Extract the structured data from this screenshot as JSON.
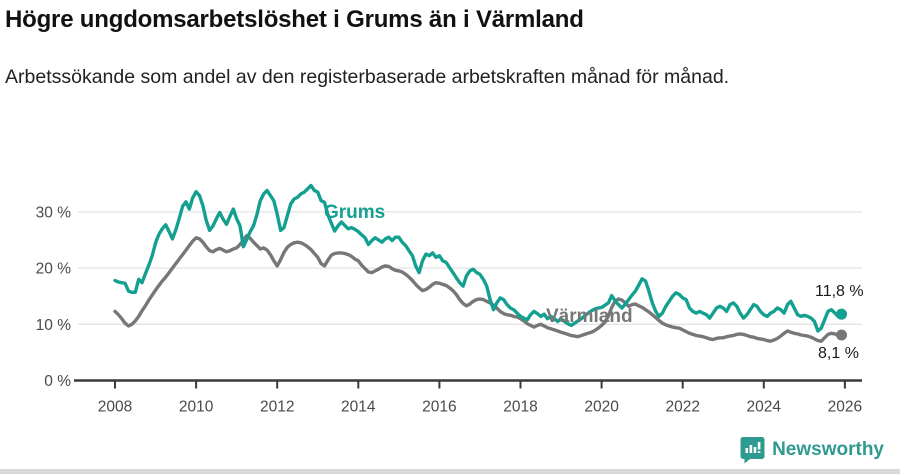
{
  "header": {
    "title": "Högre ungdomsarbetslöshet i Grums än i Värmland",
    "subtitle": "Arbetssökande som andel av den registerbaserade arbetskraften månad för månad."
  },
  "chart_data": {
    "type": "line",
    "unit": "%",
    "x_start_year": 2008,
    "points_per_year": 12,
    "x_axis": {
      "tick_years": [
        2008,
        2010,
        2012,
        2014,
        2016,
        2018,
        2020,
        2022,
        2024,
        2026
      ]
    },
    "y_axis": {
      "ticks": [
        0,
        10,
        20,
        30
      ],
      "tick_labels": [
        "0 %",
        "10 %",
        "20 %",
        "30 %"
      ],
      "min": 0,
      "max": 36,
      "grid": true
    },
    "legend_position": "inline-labels",
    "series": [
      {
        "name": "Värmland",
        "color": "#777777",
        "end_label": "8,1 %",
        "end_value": 8.1,
        "values": [
          12.3,
          11.7,
          11.0,
          10.2,
          9.7,
          10.0,
          10.6,
          11.4,
          12.4,
          13.3,
          14.3,
          15.2,
          16.1,
          16.9,
          17.7,
          18.4,
          19.2,
          20.0,
          20.8,
          21.6,
          22.4,
          23.2,
          24.0,
          24.8,
          25.4,
          25.2,
          24.6,
          23.8,
          23.1,
          22.9,
          23.3,
          23.5,
          23.2,
          22.9,
          23.1,
          23.4,
          23.6,
          24.2,
          25.0,
          25.8,
          25.3,
          24.6,
          24.0,
          23.4,
          23.6,
          23.2,
          22.4,
          21.3,
          20.4,
          21.5,
          22.8,
          23.7,
          24.2,
          24.5,
          24.6,
          24.5,
          24.2,
          23.8,
          23.3,
          22.6,
          21.9,
          20.8,
          20.4,
          21.4,
          22.3,
          22.6,
          22.7,
          22.7,
          22.6,
          22.4,
          22.1,
          21.6,
          21.3,
          20.5,
          19.9,
          19.3,
          19.2,
          19.5,
          19.8,
          20.2,
          20.4,
          20.3,
          19.9,
          19.6,
          19.5,
          19.3,
          18.9,
          18.4,
          17.8,
          17.1,
          16.5,
          16.0,
          16.2,
          16.6,
          17.1,
          17.4,
          17.3,
          17.1,
          16.9,
          16.5,
          16.0,
          15.3,
          14.4,
          13.7,
          13.3,
          13.6,
          14.1,
          14.4,
          14.5,
          14.4,
          14.1,
          13.8,
          13.4,
          12.9,
          12.3,
          11.9,
          11.7,
          11.6,
          11.4,
          11.3,
          11.0,
          10.6,
          10.1,
          9.8,
          9.5,
          9.8,
          10.0,
          9.7,
          9.4,
          9.2,
          9.0,
          8.8,
          8.6,
          8.4,
          8.2,
          8.0,
          7.9,
          7.8,
          8.0,
          8.2,
          8.4,
          8.6,
          8.9,
          9.3,
          9.8,
          10.4,
          11.5,
          13.0,
          14.1,
          14.5,
          14.3,
          13.8,
          13.2,
          13.5,
          13.6,
          13.3,
          13.0,
          12.6,
          12.2,
          11.7,
          11.2,
          10.7,
          10.2,
          9.9,
          9.7,
          9.5,
          9.4,
          9.3,
          9.0,
          8.7,
          8.4,
          8.2,
          8.0,
          7.9,
          7.8,
          7.6,
          7.4,
          7.3,
          7.5,
          7.6,
          7.6,
          7.8,
          7.9,
          8.0,
          8.2,
          8.3,
          8.2,
          8.0,
          7.8,
          7.7,
          7.5,
          7.4,
          7.3,
          7.1,
          7.0,
          7.2,
          7.5,
          7.9,
          8.4,
          8.8,
          8.6,
          8.4,
          8.3,
          8.1,
          8.0,
          7.9,
          7.7,
          7.4,
          7.1,
          7.0,
          7.6,
          8.2,
          8.4,
          8.3,
          8.0,
          8.1
        ]
      },
      {
        "name": "Grums",
        "color": "#14A091",
        "end_label": "11,8 %",
        "end_value": 11.8,
        "values": [
          17.8,
          17.5,
          17.4,
          17.3,
          15.9,
          15.7,
          15.7,
          18.0,
          17.4,
          19.0,
          20.5,
          22.2,
          24.5,
          26.0,
          27.0,
          27.7,
          26.5,
          25.2,
          26.8,
          28.8,
          31.0,
          31.8,
          30.5,
          32.5,
          33.6,
          32.9,
          31.1,
          28.5,
          26.7,
          27.5,
          28.8,
          29.9,
          28.7,
          27.8,
          29.2,
          30.5,
          28.8,
          27.5,
          23.8,
          25.1,
          26.5,
          27.5,
          29.5,
          32.0,
          33.2,
          33.8,
          32.9,
          32.0,
          29.6,
          26.7,
          27.2,
          29.3,
          31.4,
          32.3,
          32.6,
          33.2,
          33.5,
          34.1,
          34.7,
          33.8,
          33.5,
          32.0,
          31.7,
          29.5,
          28.0,
          26.6,
          27.5,
          28.2,
          27.6,
          27.0,
          27.2,
          26.9,
          26.5,
          25.9,
          25.4,
          24.2,
          24.9,
          25.4,
          25.0,
          24.6,
          25.2,
          25.5,
          24.9,
          25.5,
          25.5,
          24.6,
          24.0,
          23.1,
          22.2,
          20.4,
          19.2,
          21.3,
          22.5,
          22.2,
          22.7,
          21.9,
          22.2,
          21.3,
          21.0,
          20.1,
          19.2,
          18.3,
          17.4,
          16.8,
          18.6,
          19.5,
          19.8,
          19.2,
          18.9,
          18.0,
          16.8,
          14.4,
          12.6,
          13.8,
          14.7,
          14.4,
          13.5,
          12.9,
          12.6,
          12.0,
          11.4,
          11.1,
          10.8,
          11.7,
          12.3,
          11.9,
          11.4,
          11.8,
          11.0,
          11.4,
          11.0,
          10.5,
          11.0,
          10.5,
          10.1,
          9.8,
          10.2,
          10.6,
          11.0,
          11.5,
          12.0,
          12.4,
          12.7,
          12.9,
          13.0,
          13.4,
          13.8,
          15.1,
          14.2,
          13.5,
          12.9,
          13.6,
          14.4,
          15.2,
          15.9,
          17.0,
          18.1,
          17.7,
          15.9,
          13.8,
          12.3,
          11.4,
          12.0,
          13.2,
          14.1,
          15.0,
          15.6,
          15.3,
          14.7,
          14.4,
          12.9,
          12.3,
          12.0,
          12.3,
          12.0,
          11.7,
          11.1,
          12.0,
          12.9,
          13.2,
          12.9,
          12.3,
          13.5,
          13.8,
          13.2,
          12.0,
          11.1,
          11.7,
          12.6,
          13.5,
          13.2,
          12.3,
          11.7,
          11.4,
          12.0,
          12.3,
          12.9,
          12.6,
          12.0,
          13.5,
          14.1,
          12.9,
          11.7,
          11.4,
          11.6,
          11.4,
          11.1,
          10.5,
          8.8,
          9.3,
          10.8,
          12.3,
          12.6,
          12.0,
          11.4,
          11.8
        ]
      }
    ]
  },
  "footer": {
    "brand": "Newsworthy"
  },
  "colors": {
    "teal": "#14A091",
    "gray": "#777777",
    "grid": "#e3e3e3",
    "axis": "#3a3a3a",
    "tick_text": "#4a4a4a",
    "brand": "#2F9A8F",
    "bottom_strip": "#d9d9d9"
  }
}
